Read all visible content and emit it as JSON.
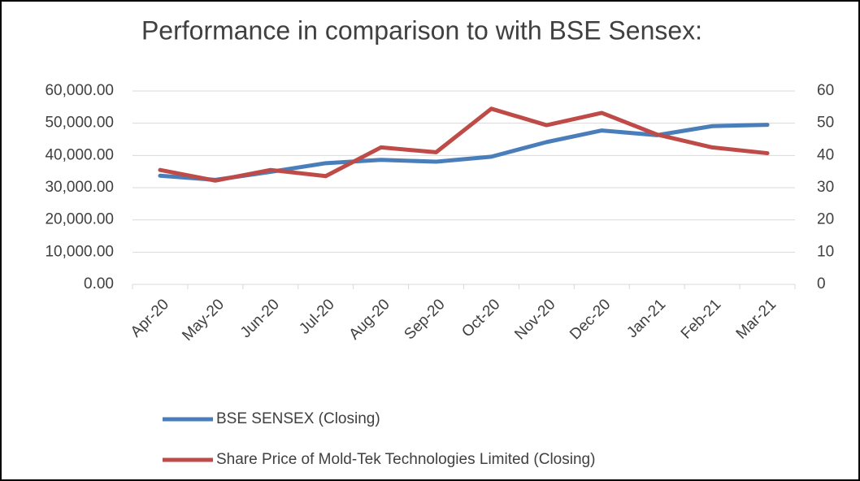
{
  "chart_data": {
    "type": "line",
    "title": "Performance in comparison to with BSE Sensex:",
    "categories": [
      "Apr-20",
      "May-20",
      "Jun-20",
      "Jul-20",
      "Aug-20",
      "Sep-20",
      "Oct-20",
      "Nov-20",
      "Dec-20",
      "Jan-21",
      "Feb-21",
      "Mar-21"
    ],
    "series": [
      {
        "name": "BSE SENSEX (Closing)",
        "color": "#4a7ebb",
        "values": [
          33718,
          32424,
          34915,
          37606,
          38628,
          38068,
          39614,
          44150,
          47751,
          46286,
          49100,
          49509
        ]
      },
      {
        "name": "Share Price of Mold-Tek  Technologies Limited  (Closing)",
        "color": "#be4b48",
        "axis": "y2",
        "values": [
          35.5,
          32.2,
          35.5,
          33.6,
          42.5,
          41,
          54.5,
          49.4,
          53.2,
          46.5,
          42.5,
          40.7
        ]
      }
    ],
    "ylim": [
      0,
      60000
    ],
    "yticks": [
      {
        "value": 0,
        "label": "0.00"
      },
      {
        "value": 10000,
        "label": "10,000.00"
      },
      {
        "value": 20000,
        "label": "20,000.00"
      },
      {
        "value": 30000,
        "label": "30,000.00"
      },
      {
        "value": 40000,
        "label": "40,000.00"
      },
      {
        "value": 50000,
        "label": "50,000.00"
      },
      {
        "value": 60000,
        "label": "60,000.00"
      }
    ],
    "y2lim": [
      0,
      60
    ],
    "y2ticks": [
      0,
      10,
      20,
      30,
      40,
      50,
      60
    ],
    "grid": true,
    "legend": "bottom"
  }
}
